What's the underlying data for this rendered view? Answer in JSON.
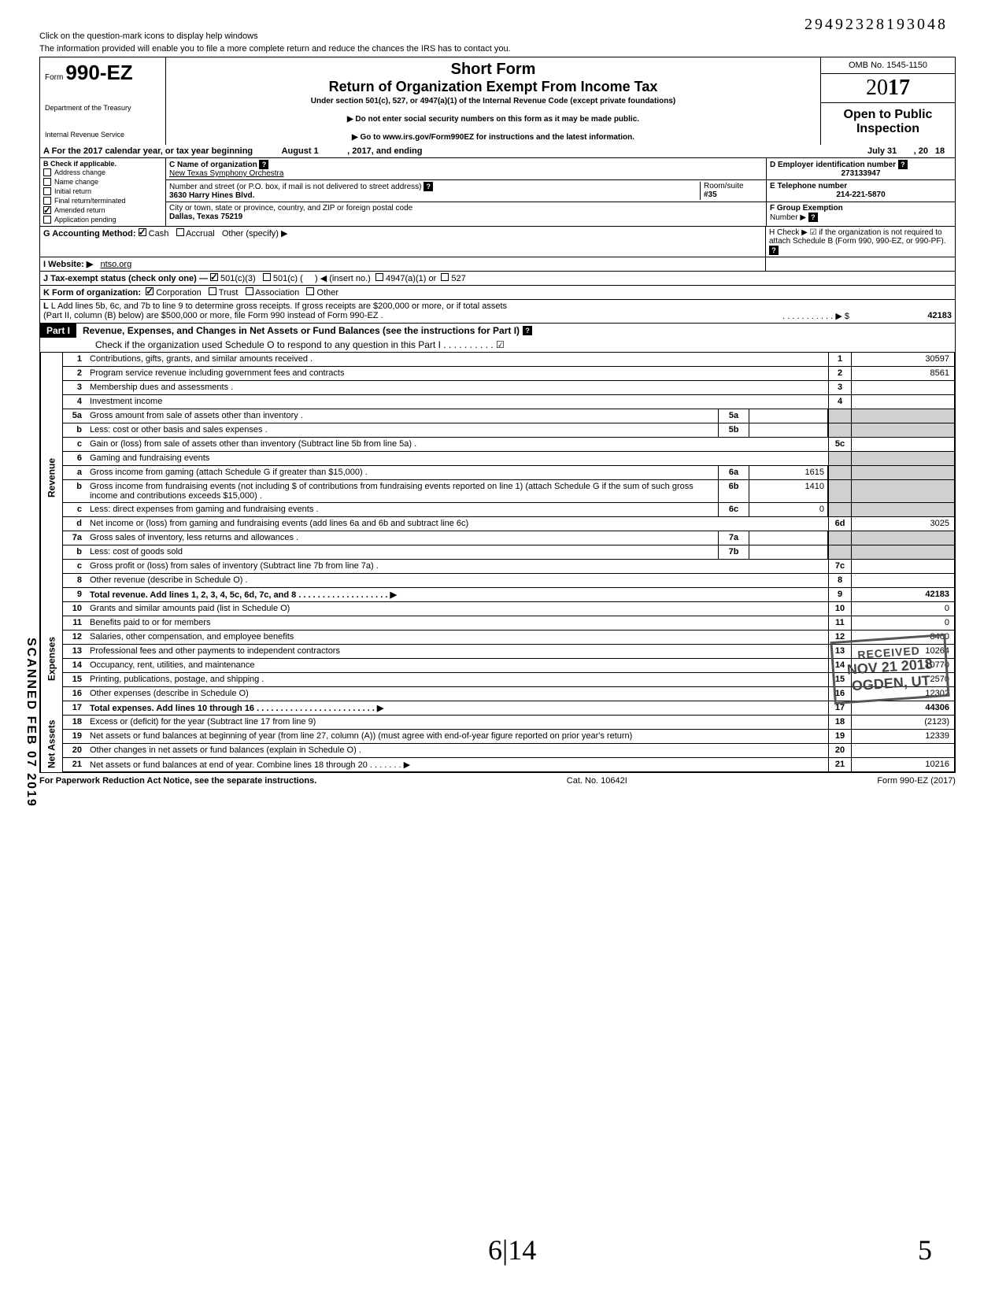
{
  "help_text1": "Click on the question-mark icons to display help windows",
  "help_text2": "The information provided will enable you to file a more complete return and reduce the chances the IRS has to contact you.",
  "dln": "29492328193048",
  "header": {
    "form_prefix": "Form",
    "form_number": "990-EZ",
    "dept1": "Department of the Treasury",
    "dept2": "Internal Revenue Service",
    "short_form": "Short Form",
    "title": "Return of Organization Exempt From Income Tax",
    "subtitle": "Under section 501(c), 527, or 4947(a)(1) of the Internal Revenue Code (except private foundations)",
    "note1": "▶ Do not enter social security numbers on this form as it may be made public.",
    "note2": "▶ Go to www.irs.gov/Form990EZ for instructions and the latest information.",
    "omb": "OMB No. 1545-1150",
    "year_prefix": "20",
    "year_bold": "17",
    "open_public": "Open to Public",
    "inspection": "Inspection"
  },
  "line_a": {
    "label": "A For the 2017 calendar year, or tax year beginning",
    "begin": "August 1",
    "mid": ", 2017, and ending",
    "end": "July 31",
    "suffix": ", 20",
    "yr": "18"
  },
  "section_b": {
    "title": "B Check if applicable.",
    "items": [
      {
        "label": "Address change",
        "checked": false
      },
      {
        "label": "Name change",
        "checked": false
      },
      {
        "label": "Initial return",
        "checked": false
      },
      {
        "label": "Final return/terminated",
        "checked": false
      },
      {
        "label": "Amended return",
        "checked": true
      },
      {
        "label": "Application pending",
        "checked": false
      }
    ]
  },
  "section_c": {
    "label": "C Name of organization",
    "value": "New Texas Symphony Orchestra",
    "street_label": "Number and street (or P.O. box, if mail is not delivered to street address)",
    "street": "3630 Harry Hines Blvd.",
    "room_label": "Room/suite",
    "room": "#35",
    "city_label": "City or town, state or province, country, and ZIP or foreign postal code",
    "city": "Dallas, Texas 75219"
  },
  "section_d": {
    "label": "D Employer identification number",
    "value": "273133947"
  },
  "section_e": {
    "label": "E Telephone number",
    "value": "214-221-5870"
  },
  "section_f": {
    "label": "F Group Exemption",
    "label2": "Number ▶"
  },
  "section_g": {
    "label": "G Accounting Method:",
    "cash": "Cash",
    "accrual": "Accrual",
    "other": "Other (specify) ▶"
  },
  "section_h": {
    "text": "H Check ▶ ☑ if the organization is not required to attach Schedule B (Form 990, 990-EZ, or 990-PF)."
  },
  "section_i": {
    "label": "I Website: ▶",
    "value": "ntso.org"
  },
  "section_j": {
    "label": "J Tax-exempt status (check only one) —",
    "opt1": "501(c)(3)",
    "opt2": "501(c) (",
    "opt2b": ") ◀ (insert no.)",
    "opt3": "4947(a)(1) or",
    "opt4": "527"
  },
  "section_k": {
    "label": "K Form of organization:",
    "corp": "Corporation",
    "trust": "Trust",
    "assoc": "Association",
    "other": "Other"
  },
  "section_l": {
    "text": "L Add lines 5b, 6c, and 7b to line 9 to determine gross receipts. If gross receipts are $200,000 or more, or if total assets",
    "text2": "(Part II, column (B) below) are $500,000 or more, file Form 990 instead of Form 990-EZ .",
    "arrow": "▶  $",
    "value": "42183"
  },
  "part1": {
    "label": "Part I",
    "title": "Revenue, Expenses, and Changes in Net Assets or Fund Balances (see the instructions for Part I)",
    "check_line": "Check if the organization used Schedule O to respond to any question in this Part I . . . . . . . . . . ☑"
  },
  "sections": {
    "revenue": "Revenue",
    "expenses": "Expenses",
    "netassets": "Net Assets"
  },
  "lines": [
    {
      "n": "1",
      "desc": "Contributions, gifts, grants, and similar amounts received .",
      "rn": "1",
      "rv": "30597"
    },
    {
      "n": "2",
      "desc": "Program service revenue including government fees and contracts",
      "rn": "2",
      "rv": "8561"
    },
    {
      "n": "3",
      "desc": "Membership dues and assessments .",
      "rn": "3",
      "rv": ""
    },
    {
      "n": "4",
      "desc": "Investment income",
      "rn": "4",
      "rv": ""
    },
    {
      "n": "5a",
      "desc": "Gross amount from sale of assets other than inventory .",
      "sn": "5a",
      "sv": "",
      "shaded": true
    },
    {
      "n": "b",
      "desc": "Less: cost or other basis and sales expenses .",
      "sn": "5b",
      "sv": "",
      "shaded": true
    },
    {
      "n": "c",
      "desc": "Gain or (loss) from sale of assets other than inventory (Subtract line 5b from line 5a) .",
      "rn": "5c",
      "rv": ""
    },
    {
      "n": "6",
      "desc": "Gaming and fundraising events",
      "shaded": true
    },
    {
      "n": "a",
      "desc": "Gross income from gaming (attach Schedule G if greater than $15,000) .",
      "sn": "6a",
      "sv": "1615",
      "shaded": true
    },
    {
      "n": "b",
      "desc": "Gross income from fundraising events (not including $                    of contributions from fundraising events reported on line 1) (attach Schedule G if the sum of such gross income and contributions exceeds $15,000) .",
      "sn": "6b",
      "sv": "1410",
      "shaded": true
    },
    {
      "n": "c",
      "desc": "Less: direct expenses from gaming and fundraising events .",
      "sn": "6c",
      "sv": "0",
      "shaded": true
    },
    {
      "n": "d",
      "desc": "Net income or (loss) from gaming and fundraising events (add lines 6a and 6b and subtract line 6c)",
      "rn": "6d",
      "rv": "3025"
    },
    {
      "n": "7a",
      "desc": "Gross sales of inventory, less returns and allowances .",
      "sn": "7a",
      "sv": "",
      "shaded": true
    },
    {
      "n": "b",
      "desc": "Less: cost of goods sold",
      "sn": "7b",
      "sv": "",
      "shaded": true
    },
    {
      "n": "c",
      "desc": "Gross profit or (loss) from sales of inventory (Subtract line 7b from line 7a) .",
      "rn": "7c",
      "rv": ""
    },
    {
      "n": "8",
      "desc": "Other revenue (describe in Schedule O) .",
      "rn": "8",
      "rv": ""
    },
    {
      "n": "9",
      "desc": "Total revenue. Add lines 1, 2, 3, 4, 5c, 6d, 7c, and 8 . . . . . . . . . . . . . . . . . . . ▶",
      "rn": "9",
      "rv": "42183",
      "bold": true
    }
  ],
  "expense_lines": [
    {
      "n": "10",
      "desc": "Grants and similar amounts paid (list in Schedule O)",
      "rn": "10",
      "rv": "0"
    },
    {
      "n": "11",
      "desc": "Benefits paid to or for members",
      "rn": "11",
      "rv": "0"
    },
    {
      "n": "12",
      "desc": "Salaries, other compensation, and employee benefits",
      "rn": "12",
      "rv": "8400"
    },
    {
      "n": "13",
      "desc": "Professional fees and other payments to independent contractors",
      "rn": "13",
      "rv": "10264"
    },
    {
      "n": "14",
      "desc": "Occupancy, rent, utilities, and maintenance",
      "rn": "14",
      "rv": "10770"
    },
    {
      "n": "15",
      "desc": "Printing, publications, postage, and shipping .",
      "rn": "15",
      "rv": "2570"
    },
    {
      "n": "16",
      "desc": "Other expenses (describe in Schedule O)",
      "rn": "16",
      "rv": "12302"
    },
    {
      "n": "17",
      "desc": "Total expenses. Add lines 10 through 16 . . . . . . . . . . . . . . . . . . . . . . . . . ▶",
      "rn": "17",
      "rv": "44306",
      "bold": true
    }
  ],
  "net_lines": [
    {
      "n": "18",
      "desc": "Excess or (deficit) for the year (Subtract line 17 from line 9)",
      "rn": "18",
      "rv": "(2123)"
    },
    {
      "n": "19",
      "desc": "Net assets or fund balances at beginning of year (from line 27, column (A)) (must agree with end-of-year figure reported on prior year's return)",
      "rn": "19",
      "rv": "12339"
    },
    {
      "n": "20",
      "desc": "Other changes in net assets or fund balances (explain in Schedule O) .",
      "rn": "20",
      "rv": ""
    },
    {
      "n": "21",
      "desc": "Net assets or fund balances at end of year. Combine lines 18 through 20 . . . . . . . ▶",
      "rn": "21",
      "rv": "10216"
    }
  ],
  "footer": {
    "left": "For Paperwork Reduction Act Notice, see the separate instructions.",
    "mid": "Cat. No. 10642I",
    "right": "Form 990-EZ (2017)"
  },
  "stamps": {
    "scanned": "SCANNED FEB 07 2019",
    "received": "RECEIVED",
    "date": "NOV 21 2018",
    "place": "OGDEN, UT"
  },
  "handwriting": {
    "initial": "6|14",
    "page": "5"
  }
}
